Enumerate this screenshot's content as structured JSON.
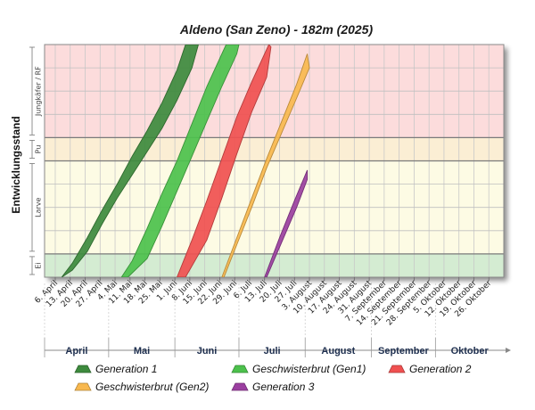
{
  "chart_data": {
    "type": "area",
    "title": "Aldeno (San Zeno) - 182m (2025)",
    "ylabel": "Entwicklungsstand",
    "stages": [
      {
        "label": "Ei",
        "from": 0,
        "to": 1,
        "color": "#d4ecd2"
      },
      {
        "label": "Larve",
        "from": 1,
        "to": 5,
        "color": "#fdfbe4"
      },
      {
        "label": "Pu",
        "from": 5,
        "to": 6,
        "color": "#fbeed4"
      },
      {
        "label": "Jungkäfer / RF",
        "from": 6,
        "to": 10,
        "color": "#fcdcdc"
      }
    ],
    "ylim": [
      0,
      10
    ],
    "xlim": [
      "2025-04-01",
      "2025-11-02"
    ],
    "x_ticks": [
      "6. April",
      "13. April",
      "20. April",
      "27. April",
      "4. Mai",
      "11. Mai",
      "18. Mai",
      "25. Mai",
      "1. Juni",
      "8. Juni",
      "15. Juni",
      "22. Juni",
      "29. Juni",
      "6. Juli",
      "13. Juli",
      "20. Juli",
      "27. Juli",
      "3. August",
      "10. August",
      "17. August",
      "24. August",
      "31. August",
      "7. September",
      "14. September",
      "21. September",
      "28. September",
      "5. Oktober",
      "12. Oktober",
      "19. Oktober",
      "26. Oktober"
    ],
    "x_tick_dates": [
      "2025-04-06",
      "2025-04-13",
      "2025-04-20",
      "2025-04-27",
      "2025-05-04",
      "2025-05-11",
      "2025-05-18",
      "2025-05-25",
      "2025-06-01",
      "2025-06-08",
      "2025-06-15",
      "2025-06-22",
      "2025-06-29",
      "2025-07-06",
      "2025-07-13",
      "2025-07-20",
      "2025-07-27",
      "2025-08-03",
      "2025-08-10",
      "2025-08-17",
      "2025-08-24",
      "2025-08-31",
      "2025-09-07",
      "2025-09-14",
      "2025-09-21",
      "2025-09-28",
      "2025-10-05",
      "2025-10-12",
      "2025-10-19",
      "2025-10-26"
    ],
    "months": [
      {
        "label": "April",
        "start": "2025-04-01",
        "end": "2025-05-01"
      },
      {
        "label": "Mai",
        "start": "2025-05-01",
        "end": "2025-06-01"
      },
      {
        "label": "Juni",
        "start": "2025-06-01",
        "end": "2025-07-01"
      },
      {
        "label": "Juli",
        "start": "2025-07-01",
        "end": "2025-08-01"
      },
      {
        "label": "August",
        "start": "2025-08-01",
        "end": "2025-09-01"
      },
      {
        "label": "September",
        "start": "2025-09-01",
        "end": "2025-10-01"
      },
      {
        "label": "Oktober",
        "start": "2025-10-01",
        "end": "2025-11-02"
      }
    ],
    "series": [
      {
        "name": "Generation 1",
        "color": "#3d8a3d",
        "upper": [
          [
            "2025-04-09",
            0
          ],
          [
            "2025-04-14",
            0.6
          ],
          [
            "2025-04-21",
            1.7
          ],
          [
            "2025-04-28",
            2.9
          ],
          [
            "2025-05-05",
            4.0
          ],
          [
            "2025-05-12",
            5.2
          ],
          [
            "2025-05-19",
            6.3
          ],
          [
            "2025-05-26",
            7.5
          ],
          [
            "2025-06-02",
            8.9
          ],
          [
            "2025-06-06",
            10
          ]
        ],
        "lower": [
          [
            "2025-04-09",
            0
          ],
          [
            "2025-04-14",
            0.3
          ],
          [
            "2025-04-21",
            1.1
          ],
          [
            "2025-04-28",
            2.3
          ],
          [
            "2025-05-05",
            3.4
          ],
          [
            "2025-05-12",
            4.4
          ],
          [
            "2025-05-19",
            5.4
          ],
          [
            "2025-05-26",
            6.4
          ],
          [
            "2025-06-02",
            7.6
          ],
          [
            "2025-06-09",
            9.0
          ],
          [
            "2025-06-12",
            10
          ]
        ]
      },
      {
        "name": "Geschwisterbrut (Gen1)",
        "color": "#4cc14c",
        "upper": [
          [
            "2025-05-07",
            0
          ],
          [
            "2025-05-12",
            0.7
          ],
          [
            "2025-05-19",
            2.1
          ],
          [
            "2025-05-26",
            3.6
          ],
          [
            "2025-06-02",
            5.0
          ],
          [
            "2025-06-09",
            6.6
          ],
          [
            "2025-06-16",
            8.2
          ],
          [
            "2025-06-23",
            9.6
          ],
          [
            "2025-06-25",
            10
          ]
        ],
        "lower": [
          [
            "2025-05-10",
            0
          ],
          [
            "2025-05-19",
            0.8
          ],
          [
            "2025-05-26",
            2.2
          ],
          [
            "2025-06-02",
            3.7
          ],
          [
            "2025-06-09",
            5.2
          ],
          [
            "2025-06-16",
            6.7
          ],
          [
            "2025-06-23",
            8.2
          ],
          [
            "2025-06-30",
            9.6
          ],
          [
            "2025-07-01",
            10
          ]
        ]
      },
      {
        "name": "Generation 2",
        "color": "#f05050",
        "upper": [
          [
            "2025-06-02",
            0
          ],
          [
            "2025-06-09",
            1.6
          ],
          [
            "2025-06-16",
            3.3
          ],
          [
            "2025-06-23",
            5.1
          ],
          [
            "2025-06-30",
            6.9
          ],
          [
            "2025-07-07",
            8.4
          ],
          [
            "2025-07-15",
            10
          ]
        ],
        "lower": [
          [
            "2025-06-06",
            0
          ],
          [
            "2025-06-16",
            1.6
          ],
          [
            "2025-06-23",
            3.4
          ],
          [
            "2025-06-30",
            5.3
          ],
          [
            "2025-07-07",
            7.1
          ],
          [
            "2025-07-14",
            8.6
          ],
          [
            "2025-07-16",
            9.9
          ]
        ]
      },
      {
        "name": "Geschwisterbrut (Gen2)",
        "color": "#f8b84e",
        "upper": [
          [
            "2025-06-23",
            0
          ],
          [
            "2025-06-30",
            1.7
          ],
          [
            "2025-07-07",
            3.4
          ],
          [
            "2025-07-14",
            5.1
          ],
          [
            "2025-07-21",
            6.7
          ],
          [
            "2025-07-28",
            8.3
          ],
          [
            "2025-08-02",
            9.6
          ]
        ],
        "lower": [
          [
            "2025-06-24",
            0
          ],
          [
            "2025-06-30",
            1.4
          ],
          [
            "2025-07-07",
            3.0
          ],
          [
            "2025-07-14",
            4.7
          ],
          [
            "2025-07-21",
            6.2
          ],
          [
            "2025-07-28",
            7.7
          ],
          [
            "2025-08-03",
            9.0
          ]
        ]
      },
      {
        "name": "Generation 3",
        "color": "#9b3fa0",
        "upper": [
          [
            "2025-07-13",
            0
          ],
          [
            "2025-07-20",
            1.7
          ],
          [
            "2025-07-27",
            3.3
          ],
          [
            "2025-08-02",
            4.6
          ]
        ],
        "lower": [
          [
            "2025-07-14",
            0
          ],
          [
            "2025-07-21",
            1.5
          ],
          [
            "2025-07-28",
            3.0
          ],
          [
            "2025-08-02",
            4.2
          ]
        ]
      }
    ],
    "legend": {
      "position": "bottom",
      "columns": 3
    }
  }
}
